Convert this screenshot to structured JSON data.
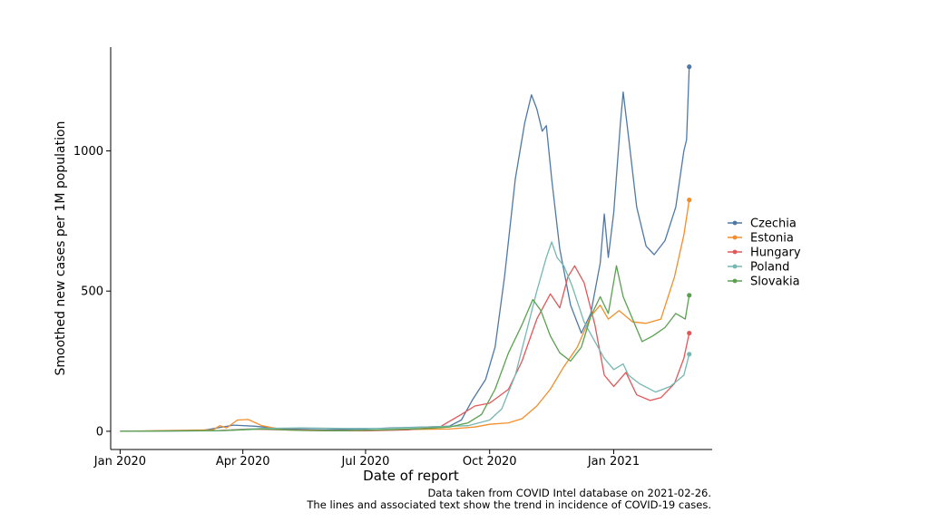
{
  "chart_data": {
    "type": "line",
    "xlabel": "Date of report",
    "ylabel": "Smoothed new cases per 1M population",
    "x_ticks": [
      "Jan 2020",
      "Apr 2020",
      "Jul 2020",
      "Oct 2020",
      "Jan 2021"
    ],
    "x_tick_dates": [
      "2020-01-01",
      "2020-04-01",
      "2020-07-01",
      "2020-10-01",
      "2021-01-01"
    ],
    "y_ticks": [
      0,
      500,
      1000
    ],
    "xlim": [
      "2019-12-25",
      "2021-03-15"
    ],
    "ylim": [
      -65,
      1370
    ],
    "legend_position": "right",
    "grid": false,
    "series": [
      {
        "name": "Czechia",
        "color": "#4e79a7",
        "points": [
          [
            "2020-01-01",
            0
          ],
          [
            "2020-03-01",
            2
          ],
          [
            "2020-03-25",
            22
          ],
          [
            "2020-04-10",
            18
          ],
          [
            "2020-05-01",
            8
          ],
          [
            "2020-06-01",
            5
          ],
          [
            "2020-07-01",
            8
          ],
          [
            "2020-07-20",
            12
          ],
          [
            "2020-08-15",
            15
          ],
          [
            "2020-09-01",
            18
          ],
          [
            "2020-09-10",
            40
          ],
          [
            "2020-09-18",
            110
          ],
          [
            "2020-09-28",
            185
          ],
          [
            "2020-10-05",
            300
          ],
          [
            "2020-10-12",
            550
          ],
          [
            "2020-10-20",
            900
          ],
          [
            "2020-10-27",
            1100
          ],
          [
            "2020-11-01",
            1200
          ],
          [
            "2020-11-05",
            1150
          ],
          [
            "2020-11-09",
            1070
          ],
          [
            "2020-11-12",
            1090
          ],
          [
            "2020-11-16",
            900
          ],
          [
            "2020-11-22",
            650
          ],
          [
            "2020-11-30",
            450
          ],
          [
            "2020-12-08",
            350
          ],
          [
            "2020-12-15",
            420
          ],
          [
            "2020-12-22",
            600
          ],
          [
            "2020-12-25",
            775
          ],
          [
            "2020-12-28",
            620
          ],
          [
            "2021-01-01",
            780
          ],
          [
            "2021-01-06",
            1100
          ],
          [
            "2021-01-08",
            1210
          ],
          [
            "2021-01-12",
            1050
          ],
          [
            "2021-01-18",
            800
          ],
          [
            "2021-01-25",
            660
          ],
          [
            "2021-01-31",
            630
          ],
          [
            "2021-02-08",
            680
          ],
          [
            "2021-02-16",
            800
          ],
          [
            "2021-02-22",
            1000
          ],
          [
            "2021-02-24",
            1040
          ],
          [
            "2021-02-26",
            1300
          ]
        ]
      },
      {
        "name": "Estonia",
        "color": "#f28e2b",
        "points": [
          [
            "2020-01-01",
            0
          ],
          [
            "2020-03-10",
            5
          ],
          [
            "2020-03-15",
            20
          ],
          [
            "2020-03-20",
            12
          ],
          [
            "2020-03-28",
            40
          ],
          [
            "2020-04-05",
            42
          ],
          [
            "2020-04-15",
            20
          ],
          [
            "2020-05-01",
            5
          ],
          [
            "2020-06-01",
            3
          ],
          [
            "2020-07-01",
            3
          ],
          [
            "2020-08-01",
            6
          ],
          [
            "2020-09-01",
            8
          ],
          [
            "2020-09-20",
            15
          ],
          [
            "2020-10-01",
            25
          ],
          [
            "2020-10-15",
            30
          ],
          [
            "2020-10-25",
            45
          ],
          [
            "2020-11-05",
            90
          ],
          [
            "2020-11-15",
            150
          ],
          [
            "2020-11-25",
            230
          ],
          [
            "2020-12-05",
            300
          ],
          [
            "2020-12-15",
            410
          ],
          [
            "2020-12-22",
            450
          ],
          [
            "2020-12-28",
            400
          ],
          [
            "2021-01-05",
            430
          ],
          [
            "2021-01-15",
            390
          ],
          [
            "2021-01-25",
            385
          ],
          [
            "2021-02-05",
            400
          ],
          [
            "2021-02-15",
            550
          ],
          [
            "2021-02-22",
            700
          ],
          [
            "2021-02-26",
            825
          ]
        ]
      },
      {
        "name": "Hungary",
        "color": "#e15759",
        "points": [
          [
            "2020-01-01",
            0
          ],
          [
            "2020-03-15",
            3
          ],
          [
            "2020-04-05",
            8
          ],
          [
            "2020-05-01",
            5
          ],
          [
            "2020-06-01",
            2
          ],
          [
            "2020-07-01",
            2
          ],
          [
            "2020-08-01",
            5
          ],
          [
            "2020-08-25",
            15
          ],
          [
            "2020-09-10",
            60
          ],
          [
            "2020-09-20",
            90
          ],
          [
            "2020-10-01",
            100
          ],
          [
            "2020-10-15",
            150
          ],
          [
            "2020-10-25",
            250
          ],
          [
            "2020-11-05",
            400
          ],
          [
            "2020-11-15",
            490
          ],
          [
            "2020-11-22",
            440
          ],
          [
            "2020-11-28",
            550
          ],
          [
            "2020-12-03",
            590
          ],
          [
            "2020-12-10",
            530
          ],
          [
            "2020-12-18",
            380
          ],
          [
            "2020-12-25",
            200
          ],
          [
            "2021-01-01",
            160
          ],
          [
            "2021-01-10",
            210
          ],
          [
            "2021-01-18",
            130
          ],
          [
            "2021-01-28",
            110
          ],
          [
            "2021-02-05",
            120
          ],
          [
            "2021-02-15",
            170
          ],
          [
            "2021-02-22",
            260
          ],
          [
            "2021-02-26",
            350
          ]
        ]
      },
      {
        "name": "Poland",
        "color": "#76b7b2",
        "points": [
          [
            "2020-01-01",
            0
          ],
          [
            "2020-03-15",
            2
          ],
          [
            "2020-04-15",
            10
          ],
          [
            "2020-05-15",
            12
          ],
          [
            "2020-06-15",
            10
          ],
          [
            "2020-07-15",
            10
          ],
          [
            "2020-08-15",
            15
          ],
          [
            "2020-09-15",
            20
          ],
          [
            "2020-10-01",
            40
          ],
          [
            "2020-10-10",
            80
          ],
          [
            "2020-10-20",
            200
          ],
          [
            "2020-10-28",
            350
          ],
          [
            "2020-11-05",
            500
          ],
          [
            "2020-11-12",
            620
          ],
          [
            "2020-11-16",
            675
          ],
          [
            "2020-11-20",
            620
          ],
          [
            "2020-11-25",
            590
          ],
          [
            "2020-12-01",
            520
          ],
          [
            "2020-12-10",
            390
          ],
          [
            "2020-12-18",
            320
          ],
          [
            "2020-12-25",
            260
          ],
          [
            "2021-01-01",
            220
          ],
          [
            "2021-01-08",
            240
          ],
          [
            "2021-01-12",
            200
          ],
          [
            "2021-01-20",
            170
          ],
          [
            "2021-02-01",
            140
          ],
          [
            "2021-02-12",
            160
          ],
          [
            "2021-02-22",
            200
          ],
          [
            "2021-02-26",
            275
          ]
        ]
      },
      {
        "name": "Slovakia",
        "color": "#59a14f",
        "points": [
          [
            "2020-01-01",
            0
          ],
          [
            "2020-03-20",
            3
          ],
          [
            "2020-04-15",
            8
          ],
          [
            "2020-05-15",
            3
          ],
          [
            "2020-06-15",
            2
          ],
          [
            "2020-07-15",
            5
          ],
          [
            "2020-08-15",
            10
          ],
          [
            "2020-09-01",
            15
          ],
          [
            "2020-09-15",
            30
          ],
          [
            "2020-09-25",
            60
          ],
          [
            "2020-10-05",
            150
          ],
          [
            "2020-10-15",
            280
          ],
          [
            "2020-10-25",
            380
          ],
          [
            "2020-11-02",
            470
          ],
          [
            "2020-11-08",
            430
          ],
          [
            "2020-11-15",
            340
          ],
          [
            "2020-11-22",
            280
          ],
          [
            "2020-11-30",
            250
          ],
          [
            "2020-12-08",
            300
          ],
          [
            "2020-12-15",
            410
          ],
          [
            "2020-12-22",
            480
          ],
          [
            "2020-12-28",
            420
          ],
          [
            "2021-01-03",
            590
          ],
          [
            "2021-01-08",
            480
          ],
          [
            "2021-01-15",
            400
          ],
          [
            "2021-01-22",
            320
          ],
          [
            "2021-01-30",
            340
          ],
          [
            "2021-02-08",
            370
          ],
          [
            "2021-02-16",
            420
          ],
          [
            "2021-02-23",
            400
          ],
          [
            "2021-02-26",
            485
          ]
        ]
      }
    ]
  },
  "caption": {
    "line1": "Data taken from COVID Intel database on 2021-02-26.",
    "line2": "The lines and associated text show the trend in incidence of COVID-19 cases."
  }
}
